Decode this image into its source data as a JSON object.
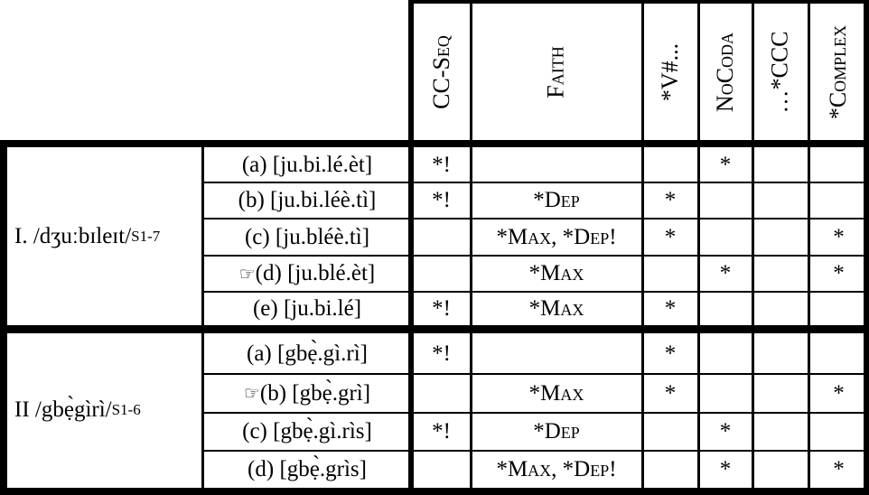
{
  "constraints": [
    {
      "id": "ccseq",
      "label": "CC-Seq"
    },
    {
      "id": "faith",
      "label": "Faith"
    },
    {
      "id": "vhash",
      "label": "*V#..."
    },
    {
      "id": "nocoda",
      "label": "NoCoda"
    },
    {
      "id": "ccc",
      "label": "…*CCC"
    },
    {
      "id": "complex",
      "label": "*Complex"
    }
  ],
  "inputs": [
    {
      "id": "input-1",
      "form": "I. /dʒuːbɪleɪt/",
      "source": "S1-7"
    },
    {
      "id": "input-2",
      "form": "II /gbẹ̀gìrì/",
      "source": "S1-6"
    }
  ],
  "candidates": [
    {
      "label": "(a) [ju.bi.lé.èt]",
      "winner": false,
      "marks": [
        "*!",
        "",
        "",
        "*",
        "",
        ""
      ]
    },
    {
      "label": "(b) [ju.bi.léè.tì]",
      "winner": false,
      "marks": [
        "*!",
        "*Dep",
        "*",
        "",
        "",
        ""
      ]
    },
    {
      "label": "(c) [ju.bléè.tì]",
      "winner": false,
      "marks": [
        "",
        "*Max, *Dep!",
        "*",
        "",
        "",
        "*"
      ]
    },
    {
      "label": "(d) [ju.blé.èt]",
      "winner": true,
      "marks": [
        "",
        "*Max",
        "",
        "*",
        "",
        "*"
      ]
    },
    {
      "label": "(e) [ju.bi.lé]",
      "winner": false,
      "marks": [
        "*!",
        "*Max",
        "*",
        "",
        "",
        ""
      ]
    },
    {
      "label": "(a) [gbẹ̀.gì.rì]",
      "winner": false,
      "marks": [
        "*!",
        "",
        "*",
        "",
        "",
        ""
      ]
    },
    {
      "label": "(b) [gbẹ̀.grì]",
      "winner": true,
      "marks": [
        "",
        "*Max",
        "*",
        "",
        "",
        "*"
      ]
    },
    {
      "label": "(c) [gbẹ̀.gì.rìs]",
      "winner": false,
      "marks": [
        "*!",
        "* Dep",
        "",
        "*",
        "",
        ""
      ]
    },
    {
      "label": "(d) [gbẹ̀.grìs]",
      "winner": false,
      "marks": [
        "",
        "*Max, *Dep!",
        "",
        "*",
        "",
        "*"
      ]
    }
  ],
  "winner_icon": "☞"
}
